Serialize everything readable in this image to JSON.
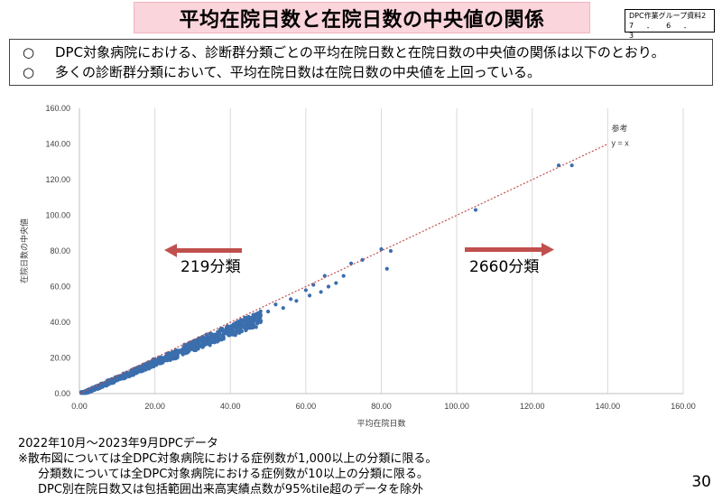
{
  "header": {
    "title": "平均在院日数と在院日数の中央値の関係",
    "badge_line1": "DPC作業グループ資料2",
    "badge_line2": "7．6．3"
  },
  "summary": {
    "bullet": "○",
    "items": [
      "DPC対象病院における、診断群分類ごとの平均在院日数と在院日数の中央値の関係は以下のとおり。",
      "多くの診断群分類において、平均在院日数は在院日数の中央値を上回っている。"
    ]
  },
  "chart_data": {
    "type": "scatter",
    "xlabel": "平均在院日数",
    "ylabel": "在院日数の中央値",
    "xlim": [
      0,
      160
    ],
    "ylim": [
      0,
      160
    ],
    "x_ticks": [
      "0.00",
      "20.00",
      "40.00",
      "60.00",
      "80.00",
      "100.00",
      "120.00",
      "140.00",
      "160.00"
    ],
    "y_ticks": [
      "0.00",
      "20.00",
      "40.00",
      "60.00",
      "80.00",
      "100.00",
      "120.00",
      "140.00",
      "160.00"
    ],
    "grid": "vertical",
    "reference_line": {
      "label_line1": "参考",
      "label_line2": "y = x",
      "color": "#c0504d"
    },
    "point_color": "#3a6ead",
    "annotations": [
      {
        "text": "219分類",
        "arrow": "left",
        "color": "#c0504d"
      },
      {
        "text": "2660分類",
        "arrow": "right",
        "color": "#c0504d"
      }
    ],
    "notable_points": [
      {
        "x": 130.5,
        "y": 128
      },
      {
        "x": 127,
        "y": 128
      },
      {
        "x": 105,
        "y": 103
      },
      {
        "x": 82.5,
        "y": 80
      },
      {
        "x": 81.5,
        "y": 70
      },
      {
        "x": 80,
        "y": 81
      },
      {
        "x": 75,
        "y": 75
      },
      {
        "x": 72,
        "y": 73
      },
      {
        "x": 70,
        "y": 66
      },
      {
        "x": 68,
        "y": 62
      },
      {
        "x": 65,
        "y": 66
      },
      {
        "x": 64,
        "y": 57
      },
      {
        "x": 61,
        "y": 55
      },
      {
        "x": 57.5,
        "y": 52
      },
      {
        "x": 56,
        "y": 53
      },
      {
        "x": 54,
        "y": 48
      },
      {
        "x": 52,
        "y": 50
      },
      {
        "x": 50,
        "y": 46
      },
      {
        "x": 48,
        "y": 40
      },
      {
        "x": 46,
        "y": 41
      },
      {
        "x": 44,
        "y": 38
      },
      {
        "x": 60,
        "y": 58
      },
      {
        "x": 62,
        "y": 61
      },
      {
        "x": 66,
        "y": 60
      }
    ]
  },
  "notes": {
    "line1": "2022年10月～2023年9月DPCデータ",
    "line2": "※散布図については全DPC対象病院における症例数が1,000以上の分類に限る。",
    "line3": "分類数については全DPC対象病院における症例数が10以上の分類に限る。",
    "line4": "DPC別在院日数又は包括範囲出来高実績点数が95%tile超のデータを除外"
  },
  "page_number": "30"
}
